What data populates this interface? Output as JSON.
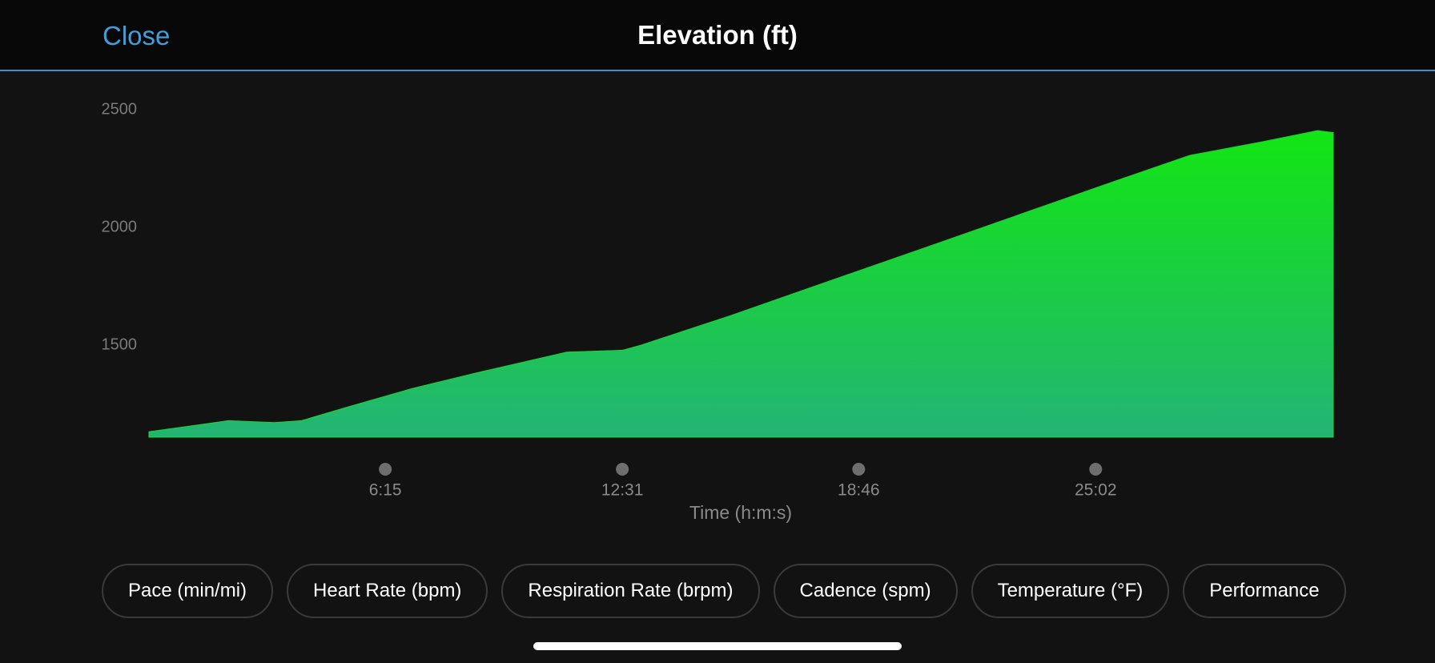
{
  "header": {
    "close": "Close",
    "title": "Elevation (ft)"
  },
  "chart_data": {
    "type": "area",
    "x_label": "Time (h:m:s)",
    "color": "#1ed33a",
    "grid": false,
    "x": [
      0,
      126,
      199,
      242,
      315,
      417,
      518,
      663,
      751,
      780,
      925,
      1070,
      1215,
      1360,
      1505,
      1651,
      1767,
      1854,
      1879
    ],
    "values": [
      1133,
      1180,
      1172,
      1180,
      1238,
      1316,
      1382,
      1471,
      1479,
      1500,
      1628,
      1764,
      1899,
      2035,
      2171,
      2306,
      2364,
      2411,
      2403
    ],
    "xlim": [
      0,
      1879
    ],
    "xticks": [
      {
        "value": 375,
        "label": "6:15"
      },
      {
        "value": 751,
        "label": "12:31"
      },
      {
        "value": 1126,
        "label": "18:46"
      },
      {
        "value": 1502,
        "label": "25:02"
      }
    ],
    "ylim": [
      1110,
      2500
    ],
    "yticks": [
      1500,
      2000,
      2500
    ]
  },
  "tabs": [
    "Pace (min/mi)",
    "Heart Rate (bpm)",
    "Respiration Rate (brpm)",
    "Cadence (spm)",
    "Temperature (°F)",
    "Performance"
  ]
}
